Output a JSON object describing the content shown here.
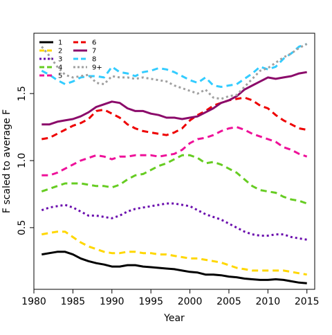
{
  "chart_data": {
    "type": "line",
    "title": "",
    "xlabel": "Year",
    "ylabel": "F scaled to average F",
    "xlim": [
      1980,
      2016
    ],
    "ylim": [
      0.04,
      1.95
    ],
    "xticks": [
      1980,
      1985,
      1990,
      1995,
      2000,
      2005,
      2010,
      2015
    ],
    "yticks": [
      0.5,
      1.0,
      1.5
    ],
    "ytick_labels": [
      "0.5",
      "1.0",
      "1.5"
    ],
    "grid": false,
    "legend": {
      "position": "top-left",
      "columns": 3
    },
    "x": [
      1981,
      1982,
      1983,
      1984,
      1985,
      1986,
      1987,
      1988,
      1989,
      1990,
      1991,
      1992,
      1993,
      1994,
      1995,
      1996,
      1997,
      1998,
      1999,
      2000,
      2001,
      2002,
      2003,
      2004,
      2005,
      2006,
      2007,
      2008,
      2009,
      2010,
      2011,
      2012,
      2013,
      2014,
      2015
    ],
    "series": [
      {
        "name": "1",
        "color": "#000000",
        "dash": "solid",
        "values": [
          0.3,
          0.31,
          0.32,
          0.32,
          0.3,
          0.27,
          0.25,
          0.235,
          0.225,
          0.21,
          0.21,
          0.22,
          0.22,
          0.21,
          0.205,
          0.2,
          0.195,
          0.19,
          0.18,
          0.17,
          0.165,
          0.15,
          0.15,
          0.145,
          0.135,
          0.13,
          0.12,
          0.115,
          0.11,
          0.11,
          0.115,
          0.11,
          0.1,
          0.09,
          0.085
        ]
      },
      {
        "name": "2",
        "color": "#ffd700",
        "dash": "dashed",
        "values": [
          0.45,
          0.46,
          0.47,
          0.47,
          0.43,
          0.39,
          0.36,
          0.34,
          0.32,
          0.31,
          0.31,
          0.32,
          0.32,
          0.31,
          0.31,
          0.3,
          0.3,
          0.29,
          0.28,
          0.27,
          0.27,
          0.26,
          0.25,
          0.24,
          0.22,
          0.2,
          0.19,
          0.18,
          0.18,
          0.18,
          0.18,
          0.18,
          0.17,
          0.16,
          0.15
        ]
      },
      {
        "name": "3",
        "color": "#6a0dad",
        "dash": "dotted",
        "values": [
          0.63,
          0.65,
          0.66,
          0.67,
          0.65,
          0.62,
          0.59,
          0.59,
          0.58,
          0.57,
          0.59,
          0.62,
          0.64,
          0.65,
          0.66,
          0.67,
          0.68,
          0.68,
          0.67,
          0.66,
          0.63,
          0.6,
          0.58,
          0.56,
          0.53,
          0.5,
          0.47,
          0.45,
          0.44,
          0.44,
          0.45,
          0.45,
          0.43,
          0.42,
          0.41
        ]
      },
      {
        "name": "4",
        "color": "#66cc22",
        "dash": "dashed",
        "values": [
          0.77,
          0.79,
          0.81,
          0.83,
          0.83,
          0.83,
          0.82,
          0.81,
          0.81,
          0.8,
          0.82,
          0.86,
          0.89,
          0.9,
          0.93,
          0.96,
          0.98,
          1.01,
          1.04,
          1.04,
          1.02,
          0.98,
          0.99,
          0.97,
          0.94,
          0.91,
          0.86,
          0.81,
          0.78,
          0.77,
          0.76,
          0.73,
          0.71,
          0.7,
          0.68
        ]
      },
      {
        "name": "5",
        "color": "#ee1199",
        "dash": "dashed",
        "values": [
          0.89,
          0.89,
          0.91,
          0.94,
          0.97,
          1.0,
          1.02,
          1.04,
          1.03,
          1.01,
          1.03,
          1.03,
          1.04,
          1.04,
          1.04,
          1.03,
          1.04,
          1.05,
          1.08,
          1.13,
          1.16,
          1.17,
          1.19,
          1.22,
          1.24,
          1.25,
          1.23,
          1.2,
          1.18,
          1.16,
          1.14,
          1.1,
          1.08,
          1.05,
          1.03
        ]
      },
      {
        "name": "6",
        "color": "#ee0000",
        "dash": "dashed",
        "values": [
          1.16,
          1.17,
          1.2,
          1.23,
          1.26,
          1.28,
          1.31,
          1.37,
          1.38,
          1.35,
          1.32,
          1.27,
          1.24,
          1.22,
          1.21,
          1.2,
          1.19,
          1.21,
          1.24,
          1.3,
          1.34,
          1.37,
          1.41,
          1.43,
          1.45,
          1.46,
          1.47,
          1.45,
          1.41,
          1.39,
          1.34,
          1.3,
          1.27,
          1.24,
          1.23
        ]
      },
      {
        "name": "7",
        "color": "#8b0a6a",
        "dash": "solid",
        "values": [
          1.27,
          1.27,
          1.29,
          1.3,
          1.31,
          1.33,
          1.36,
          1.4,
          1.42,
          1.44,
          1.43,
          1.39,
          1.37,
          1.37,
          1.35,
          1.34,
          1.32,
          1.32,
          1.31,
          1.32,
          1.33,
          1.36,
          1.39,
          1.43,
          1.45,
          1.48,
          1.53,
          1.56,
          1.59,
          1.62,
          1.61,
          1.62,
          1.63,
          1.65,
          1.66
        ]
      },
      {
        "name": "8",
        "color": "#33ccff",
        "dash": "dashed",
        "values": [
          1.67,
          1.64,
          1.6,
          1.57,
          1.59,
          1.62,
          1.63,
          1.63,
          1.62,
          1.7,
          1.66,
          1.65,
          1.63,
          1.66,
          1.67,
          1.69,
          1.68,
          1.66,
          1.63,
          1.6,
          1.58,
          1.62,
          1.56,
          1.55,
          1.56,
          1.57,
          1.61,
          1.65,
          1.7,
          1.68,
          1.7,
          1.76,
          1.8,
          1.85,
          1.87
        ]
      },
      {
        "name": "9+",
        "color": "#a0a0a0",
        "dash": "dotted",
        "values": [
          1.85,
          1.78,
          1.7,
          1.64,
          1.62,
          1.63,
          1.64,
          1.58,
          1.57,
          1.63,
          1.62,
          1.62,
          1.61,
          1.62,
          1.61,
          1.6,
          1.59,
          1.56,
          1.54,
          1.52,
          1.5,
          1.53,
          1.47,
          1.46,
          1.48,
          1.49,
          1.55,
          1.61,
          1.67,
          1.69,
          1.73,
          1.77,
          1.8,
          1.84,
          1.87
        ]
      }
    ]
  }
}
